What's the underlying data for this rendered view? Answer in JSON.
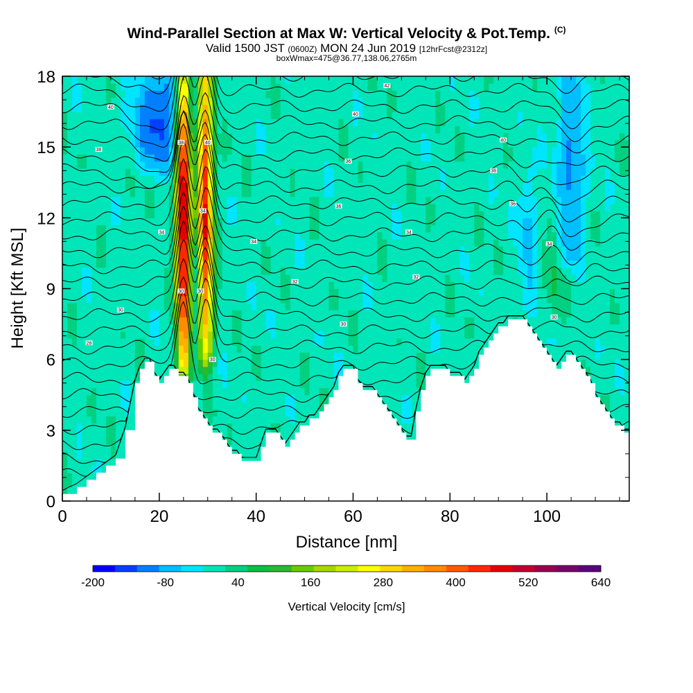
{
  "title": {
    "main": "Wind-Parallel Section at Max W: Vertical Velocity & Pot.Temp.",
    "main_tag": "(C)",
    "valid_prefix": "Valid 1500 JST",
    "valid_zulu": "(0600Z)",
    "valid_date": "MON 24 Jun 2019",
    "forecast": "[12hrFcst@2312z]",
    "box_info": "boxWmax=475@36.77,138.06,2765m"
  },
  "chart_data": {
    "type": "heatmap",
    "xlabel": "Distance [nm]",
    "ylabel": "Height [Kft MSL]",
    "xlim": [
      0,
      117
    ],
    "ylim": [
      0,
      18
    ],
    "x_ticks": [
      0,
      20,
      40,
      60,
      80,
      100
    ],
    "y_ticks": [
      0,
      3,
      6,
      9,
      12,
      15,
      18
    ],
    "colorbar": {
      "label": "Vertical Velocity [cm/s]",
      "min": -200,
      "max": 640,
      "step": 40,
      "tick_labels": [
        "-200",
        "-80",
        "40",
        "160",
        "280",
        "400",
        "520",
        "640"
      ],
      "colors": [
        "#0000ff",
        "#0040ff",
        "#0080ff",
        "#00bfff",
        "#00e5ff",
        "#00e6b8",
        "#00d080",
        "#10bf40",
        "#2eb82e",
        "#66cc00",
        "#a6d800",
        "#ccee00",
        "#ffff00",
        "#ffd700",
        "#ffb000",
        "#ff8c00",
        "#ff5a00",
        "#ff2800",
        "#e60000",
        "#c00030",
        "#990050",
        "#7a006a",
        "#5a0080"
      ]
    },
    "terrain_profile": {
      "x": [
        0,
        3,
        5,
        7,
        9,
        11,
        13,
        15,
        16,
        17,
        18,
        19,
        20,
        21,
        22,
        23,
        24,
        25,
        26,
        27,
        28,
        29,
        30,
        31,
        32,
        33,
        34,
        35,
        36,
        37,
        38,
        39,
        40,
        41,
        42,
        43,
        44,
        45,
        46,
        47,
        48,
        49,
        50,
        51,
        52,
        53,
        54,
        55,
        56,
        57,
        58,
        59,
        60,
        61,
        62,
        63,
        64,
        65,
        66,
        67,
        68,
        69,
        70,
        71,
        72,
        73,
        74,
        75,
        76,
        77,
        78,
        79,
        80,
        81,
        82,
        83,
        84,
        85,
        86,
        87,
        88,
        89,
        90,
        91,
        92,
        93,
        94,
        95,
        96,
        97,
        98,
        99,
        100,
        101,
        102,
        103,
        104,
        105,
        106,
        107,
        108,
        109,
        110,
        111,
        112,
        113,
        114,
        115,
        116,
        117
      ],
      "height": [
        0.3,
        0.6,
        0.9,
        1.2,
        1.5,
        1.8,
        3.0,
        5.0,
        5.6,
        5.9,
        5.9,
        5.3,
        5.0,
        5.3,
        5.6,
        5.6,
        5.3,
        5.3,
        5.0,
        4.4,
        3.8,
        3.5,
        3.2,
        2.9,
        2.9,
        2.6,
        2.3,
        2.0,
        2.0,
        1.7,
        1.7,
        1.7,
        1.7,
        2.3,
        2.9,
        2.9,
        2.9,
        2.6,
        2.3,
        2.6,
        2.9,
        3.2,
        3.2,
        3.5,
        3.5,
        3.8,
        4.1,
        4.4,
        4.7,
        5.3,
        5.6,
        5.6,
        5.6,
        5.0,
        4.7,
        4.7,
        4.7,
        4.4,
        4.1,
        3.8,
        3.5,
        3.2,
        2.9,
        2.6,
        2.6,
        3.8,
        4.7,
        5.3,
        5.6,
        5.6,
        5.6,
        5.6,
        5.3,
        5.3,
        5.3,
        5.0,
        5.3,
        5.6,
        6.2,
        6.5,
        6.8,
        7.1,
        7.4,
        7.4,
        7.7,
        7.7,
        7.7,
        7.7,
        7.4,
        7.1,
        6.8,
        6.5,
        6.2,
        5.9,
        5.6,
        5.9,
        6.2,
        6.2,
        5.9,
        5.6,
        5.3,
        5.0,
        4.4,
        4.1,
        3.8,
        3.5,
        3.2,
        3.2,
        2.9,
        2.9
      ]
    },
    "features": [
      {
        "kind": "updraft",
        "x": 25,
        "ybot": 5.8,
        "ytop": 18,
        "peak": 600,
        "width": 1.0
      },
      {
        "kind": "updraft",
        "x": 29.5,
        "ybot": 6.2,
        "ytop": 18,
        "peak": 500,
        "width": 1.1
      },
      {
        "kind": "downdraft",
        "x": 20,
        "ybot": 14.5,
        "ytop": 18,
        "peak": -160,
        "width": 3.5
      },
      {
        "kind": "downdraft",
        "x": 105,
        "ybot": 10.5,
        "ytop": 18,
        "peak": -120,
        "width": 2.0
      },
      {
        "kind": "downdraft",
        "x": 27.5,
        "ybot": 6.5,
        "ytop": 11,
        "peak": -80,
        "width": 0.8
      },
      {
        "kind": "downdraft",
        "x": 96,
        "ybot": 9,
        "ytop": 14,
        "peak": -80,
        "width": 1.2
      },
      {
        "kind": "updraft",
        "x": 101.5,
        "ybot": 8,
        "ytop": 12,
        "peak": 60,
        "width": 1.0
      }
    ],
    "isentrope_labels": [
      {
        "text": "42",
        "x": 67,
        "y": 17.6
      },
      {
        "text": "40",
        "x": 10,
        "y": 16.7
      },
      {
        "text": "40",
        "x": 60.5,
        "y": 16.4
      },
      {
        "text": "38",
        "x": 7.5,
        "y": 14.9
      },
      {
        "text": "38",
        "x": 24.5,
        "y": 15.2
      },
      {
        "text": "40",
        "x": 30,
        "y": 15.2
      },
      {
        "text": "40",
        "x": 91,
        "y": 15.3
      },
      {
        "text": "36",
        "x": 59,
        "y": 14.4
      },
      {
        "text": "36",
        "x": 89,
        "y": 14.0
      },
      {
        "text": "36",
        "x": 57,
        "y": 12.5
      },
      {
        "text": "36",
        "x": 93,
        "y": 12.6
      },
      {
        "text": "34",
        "x": 29,
        "y": 12.3
      },
      {
        "text": "34",
        "x": 20.5,
        "y": 11.4
      },
      {
        "text": "34",
        "x": 39.5,
        "y": 11.0
      },
      {
        "text": "34",
        "x": 71.5,
        "y": 11.4
      },
      {
        "text": "34",
        "x": 100.5,
        "y": 10.9
      },
      {
        "text": "32",
        "x": 48,
        "y": 9.3
      },
      {
        "text": "32",
        "x": 73,
        "y": 9.5
      },
      {
        "text": "30",
        "x": 24.5,
        "y": 8.9
      },
      {
        "text": "30",
        "x": 28.5,
        "y": 8.9
      },
      {
        "text": "30",
        "x": 12,
        "y": 8.1
      },
      {
        "text": "30",
        "x": 58,
        "y": 7.5
      },
      {
        "text": "30",
        "x": 101.5,
        "y": 7.8
      },
      {
        "text": "28",
        "x": 5.5,
        "y": 6.7
      },
      {
        "text": "30",
        "x": 31,
        "y": 6.0
      }
    ]
  }
}
